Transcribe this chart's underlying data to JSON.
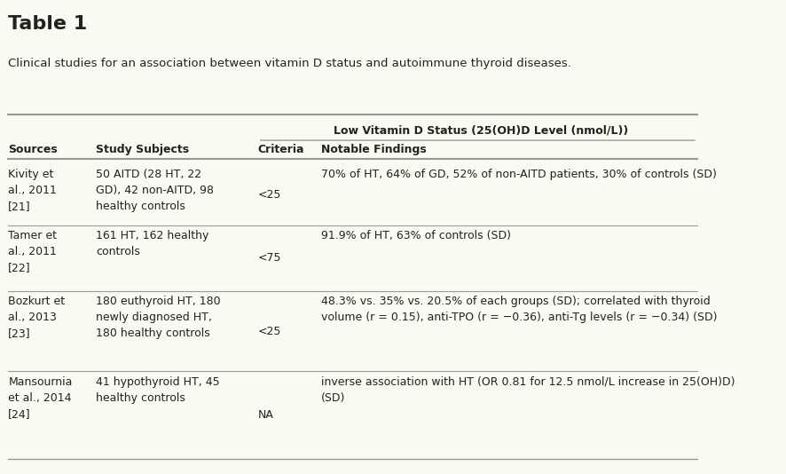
{
  "title": "Table 1",
  "subtitle": "Clinical studies for an association between vitamin D status and autoimmune thyroid diseases.",
  "bg_color": "#fafaf0",
  "header_group": "Low Vitamin D Status (25(OH)D Level (nmol/L))",
  "col_headers": [
    "Sources",
    "Study Subjects",
    "Criteria",
    "Notable Findings"
  ],
  "rows": [
    {
      "source": "Kivity et\nal., 2011\n[21]",
      "subjects": "50 AITD (28 HT, 22\nGD), 42 non-AITD, 98\nhealthy controls",
      "criteria": "<25",
      "findings": "70% of HT, 64% of GD, 52% of non-AITD patients, 30% of controls (SD)"
    },
    {
      "source": "Tamer et\nal., 2011\n[22]",
      "subjects": "161 HT, 162 healthy\ncontrols",
      "criteria": "<75",
      "findings": "91.9% of HT, 63% of controls (SD)"
    },
    {
      "source": "Bozkurt et\nal., 2013\n[23]",
      "subjects": "180 euthyroid HT, 180\nnewly diagnosed HT,\n180 healthy controls",
      "criteria": "<25",
      "findings": "48.3% vs. 35% vs. 20.5% of each groups (SD); correlated with thyroid\nvolume (r = 0.15), anti-TPO (r = −0.36), anti-Tg levels (r = −0.34) (SD)"
    },
    {
      "source": "Mansournia\net al., 2014\n[24]",
      "subjects": "41 hypothyroid HT, 45\nhealthy controls",
      "criteria": "NA",
      "findings": "inverse association with HT (OR 0.81 for 12.5 nmol/L increase in 25(OH)D)\n(SD)"
    }
  ],
  "text_color": "#222222",
  "line_color": "#999999",
  "font_size": 9,
  "title_font_size": 16
}
